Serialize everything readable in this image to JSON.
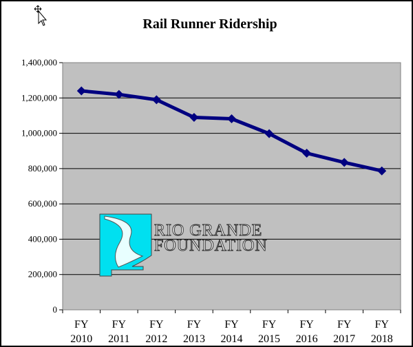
{
  "chart_data": {
    "type": "line",
    "title": "Rail Runner Ridership",
    "xlabel": "",
    "ylabel": "",
    "categories": [
      [
        "FY",
        "2010"
      ],
      [
        "FY",
        "2011"
      ],
      [
        "FY",
        "2012"
      ],
      [
        "FY",
        "2013"
      ],
      [
        "FY",
        "2014"
      ],
      [
        "FY",
        "2015"
      ],
      [
        "FY",
        "2016"
      ],
      [
        "FY",
        "2017"
      ],
      [
        "FY",
        "2018"
      ]
    ],
    "series": [
      {
        "values": [
          1240000,
          1220000,
          1190000,
          1090000,
          1082000,
          998000,
          887000,
          835000,
          787000
        ],
        "color": "#000080",
        "marker": "diamond"
      }
    ],
    "ylim": [
      0,
      1400000
    ],
    "yticks": [
      "0",
      "200,000",
      "400,000",
      "600,000",
      "800,000",
      "1,000,000",
      "1,200,000",
      "1,400,000"
    ],
    "grid": true,
    "legend": "none",
    "plot_background": "#c0c0c0"
  },
  "logo": {
    "line1": "RIO GRANDE",
    "line2": "FOUNDATION",
    "color": "#00e0f0"
  }
}
